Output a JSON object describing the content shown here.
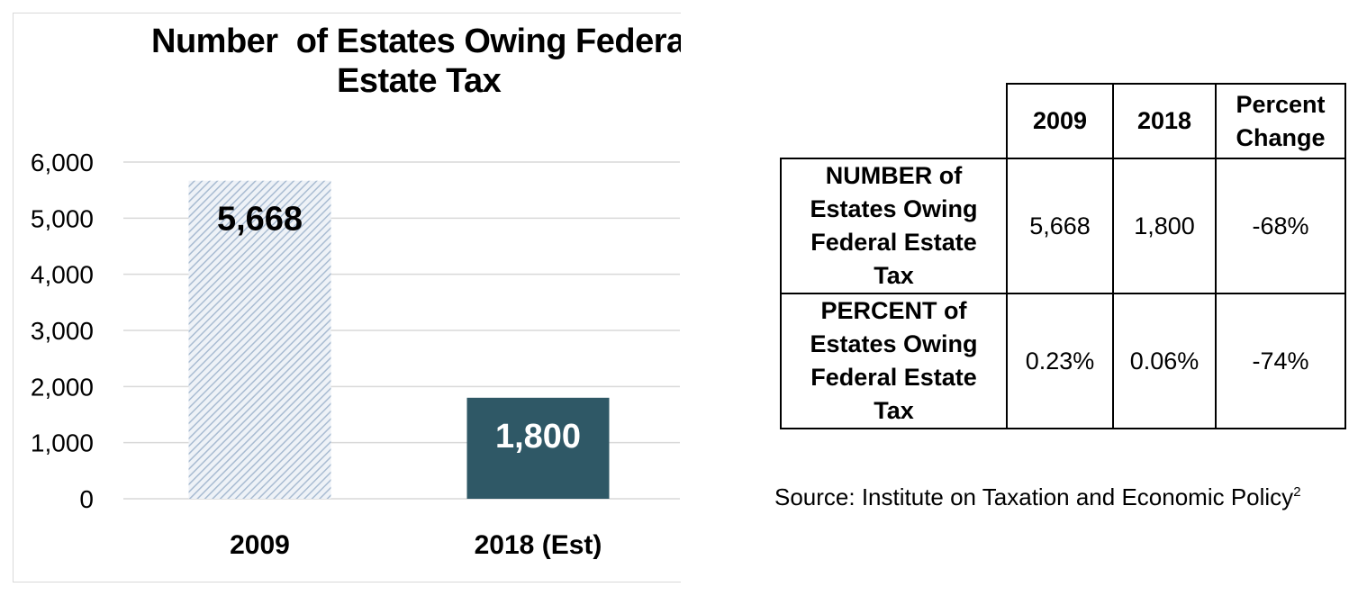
{
  "chart_data": {
    "type": "bar",
    "title_line1": "Number  of Estates Owing Federal",
    "title_line2": "Estate Tax",
    "categories": [
      "2009",
      "2018 (Est)"
    ],
    "values": [
      5668,
      1800
    ],
    "data_labels": [
      "5,668",
      "1,800"
    ],
    "yticks": [
      "0",
      "1,000",
      "2,000",
      "3,000",
      "4,000",
      "5,000",
      "6,000"
    ],
    "ytick_values": [
      0,
      1000,
      2000,
      3000,
      4000,
      5000,
      6000
    ],
    "ylim": [
      0,
      6000
    ],
    "grid": true,
    "colors": [
      "#b8c7d9",
      "#2f5866"
    ],
    "bar_styles": [
      "hatched",
      "solid"
    ]
  },
  "table": {
    "headers": [
      "2009",
      "2018",
      "Percent Change"
    ],
    "rows": [
      {
        "label": "NUMBER of Estates Owing Federal Estate Tax",
        "values": [
          "5,668",
          "1,800",
          "-68%"
        ]
      },
      {
        "label": "PERCENT of Estates Owing Federal Estate Tax",
        "values": [
          "0.23%",
          "0.06%",
          "-74%"
        ]
      }
    ]
  },
  "source": {
    "text": "Source: Institute on Taxation and Economic Policy",
    "footnote": "2"
  }
}
